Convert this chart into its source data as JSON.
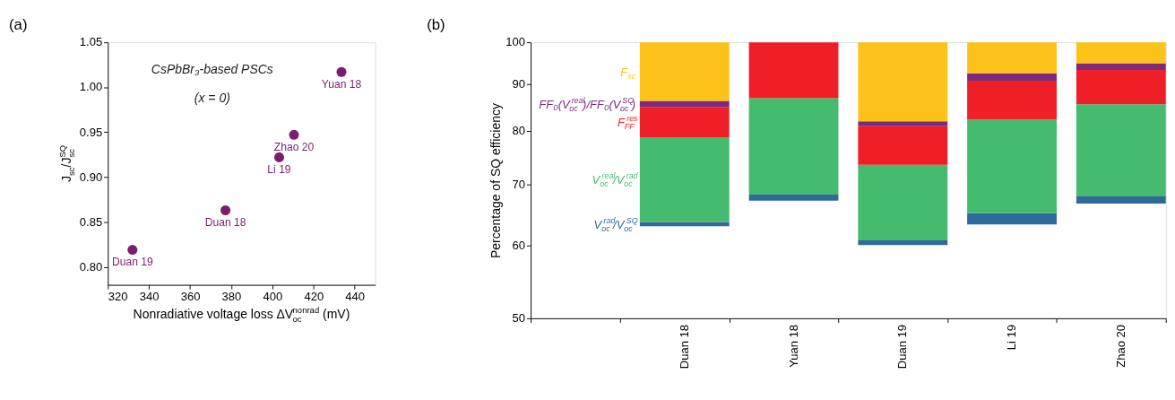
{
  "chart_data": [
    {
      "type": "scatter",
      "title": "(a)",
      "xlabel": "Nonradiative voltage loss ΔV$^{nonrad}$$_{oc}$ (mV)",
      "ylabel": "J$_{sc}$/J$^{SQ}$$_{sc}$",
      "x": [
        332,
        377.2,
        403.3,
        410.5,
        433.6
      ],
      "series": [
        {
          "color": "#7b1c6e",
          "values": [
            0.819,
            0.863,
            0.922,
            0.947,
            1.017
          ]
        }
      ],
      "xlim": [
        320,
        450
      ],
      "xticks": [
        320,
        340,
        360,
        380,
        400,
        420,
        440
      ],
      "ylim": [
        0.78,
        1.05
      ],
      "yticks": [
        {
          "value": 0.8,
          "label": "0.80"
        },
        0.85,
        {
          "value": 0.9,
          "label": "0.90"
        },
        0.95,
        {
          "value": 1.0,
          "label": "1.00"
        },
        1.05
      ],
      "marker": "circle",
      "grid": false,
      "annotations": [
        "CsPbBr₃-based PSCs",
        "(x = 0)",
        {
          "text": "Duan 19",
          "x": 332,
          "y": 0.819
        },
        {
          "text": "Duan 18",
          "x": 377.2,
          "y": 0.863
        },
        {
          "text": "Li 19",
          "x": 403.3,
          "y": 0.922
        },
        {
          "text": "Zhao 20",
          "x": 410.5,
          "y": 0.947
        },
        {
          "text": "Yuan 18",
          "x": 433.6,
          "y": 1.017
        }
      ]
    },
    {
      "type": "bar",
      "title": "(b)",
      "ylabel": "Percentage of SQ efficiency",
      "log": "y",
      "categories": [
        null,
        "Duan 18",
        "Yuan 18",
        "Duan 19",
        "Li 19",
        "Zhao 20"
      ],
      "series": [
        {
          "name": "V$^{rad}$$_{oc}$/V$^{SQ}$$_{oc}$",
          "color": "#306a9d",
          "base": [
            null,
            63.0,
            67.2,
            60.1,
            63.3,
            66.7
          ],
          "values": [
            null,
            0.7,
            1.0,
            0.7,
            1.8,
            1.2
          ]
        },
        {
          "name": "V$^{real}$$_{oc}$/V$^{rad}$$_{oc}$",
          "color": "#45bb6f",
          "base": [
            null,
            63.7,
            68.2,
            60.8,
            65.1,
            67.9
          ],
          "values": [
            null,
            15.1,
            18.7,
            12.7,
            17.3,
            17.7
          ]
        },
        {
          "name": "F$^{res}$$_{FF}$",
          "color": "#ee1f26",
          "base": [
            null,
            78.8,
            86.9,
            73.5,
            82.4,
            85.6
          ],
          "values": [
            null,
            6.2,
            13.1,
            7.5,
            8.4,
            7.7
          ]
        },
        {
          "name": "FF₀(V$^{real}$$_{oc}$)/FF₀(V$^{SQ}$$_{oc}$)",
          "color": "#7d2a7e",
          "base": [
            null,
            85.0,
            null,
            81.0,
            90.8,
            93.3
          ],
          "values": [
            null,
            1.3,
            null,
            1.0,
            1.7,
            1.6
          ]
        },
        {
          "name": "F$_{sc}$",
          "color": "#fdc218",
          "base": [
            null,
            86.3,
            null,
            82.0,
            92.5,
            94.9
          ],
          "values": [
            null,
            13.7,
            null,
            18.0,
            7.5,
            5.1
          ]
        }
      ],
      "ylim": [
        50,
        100
      ],
      "yticks": [
        50,
        60,
        70,
        80,
        90,
        100
      ],
      "grid": false
    }
  ]
}
